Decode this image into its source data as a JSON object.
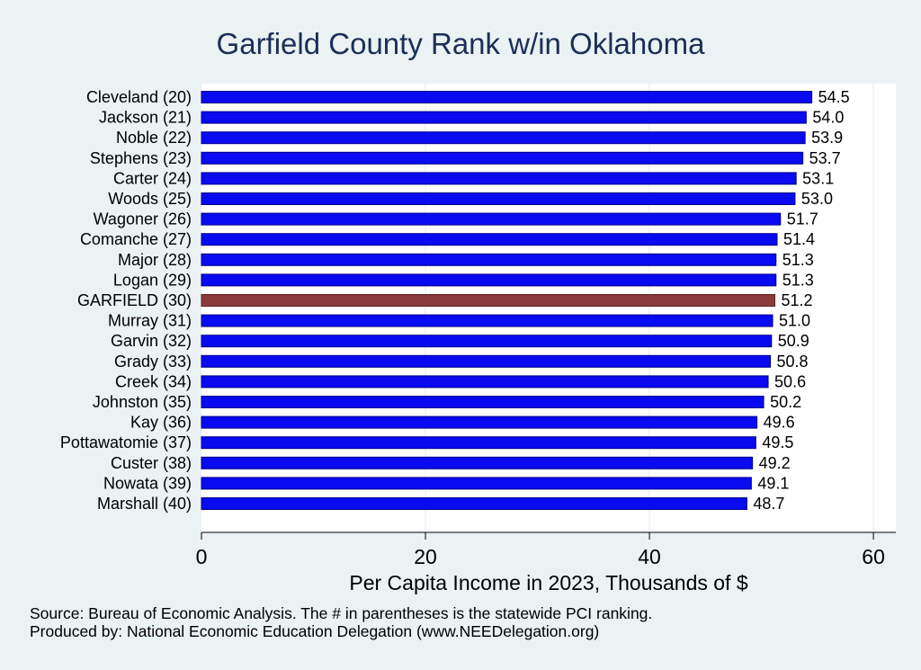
{
  "chart_data": {
    "type": "bar",
    "orientation": "horizontal",
    "title": "Garfield County Rank w/in Oklahoma",
    "xlabel": "Per Capita Income in 2023, Thousands of $",
    "ylabel": "",
    "xlim": [
      0,
      62
    ],
    "xticks": [
      0,
      20,
      40,
      60
    ],
    "grid": true,
    "categories": [
      "Cleveland (20)",
      "Jackson (21)",
      "Noble (22)",
      "Stephens (23)",
      "Carter (24)",
      "Woods (25)",
      "Wagoner (26)",
      "Comanche (27)",
      "Major (28)",
      "Logan (29)",
      "GARFIELD (30)",
      "Murray (31)",
      "Garvin (32)",
      "Grady (33)",
      "Creek (34)",
      "Johnston (35)",
      "Kay (36)",
      "Pottawatomie (37)",
      "Custer (38)",
      "Nowata (39)",
      "Marshall (40)"
    ],
    "values": [
      54.5,
      54.0,
      53.9,
      53.7,
      53.1,
      53.0,
      51.7,
      51.4,
      51.3,
      51.3,
      51.2,
      51.0,
      50.9,
      50.8,
      50.6,
      50.2,
      49.6,
      49.5,
      49.2,
      49.1,
      48.7
    ],
    "value_labels": [
      "54.5",
      "54.0",
      "53.9",
      "53.7",
      "53.1",
      "53.0",
      "51.7",
      "51.4",
      "51.3",
      "51.3",
      "51.2",
      "51.0",
      "50.9",
      "50.8",
      "50.6",
      "50.2",
      "49.6",
      "49.5",
      "49.2",
      "49.1",
      "48.7"
    ],
    "highlight": "GARFIELD (30)",
    "colors": {
      "bar": "#0a0af0",
      "bar_stroke": "#00008b",
      "highlight": "#8b3a3a",
      "title": "#1b2f57",
      "background": "#eaf2f3",
      "plot_background": "#ffffff",
      "grid": "#eaf2f3"
    }
  },
  "footer": {
    "source": "Source: Bureau of Economic Analysis. The # in parentheses is the statewide PCI ranking.",
    "produced": "Produced by: National Economic Education Delegation (www.NEEDelegation.org)"
  }
}
